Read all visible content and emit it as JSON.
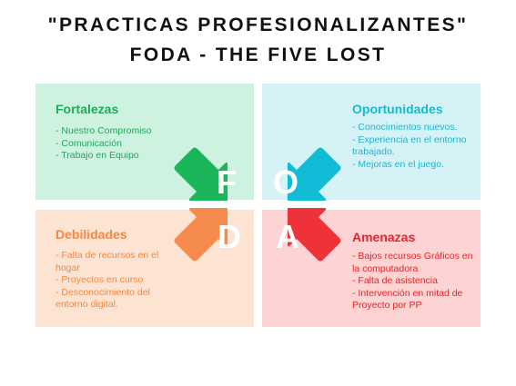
{
  "header": {
    "line1": "\"PRACTICAS PROFESIONALIZANTES\"",
    "line2": "FODA - THE FIVE LOST"
  },
  "quadrants": {
    "fortalezas": {
      "title": "Fortalezas",
      "letter": "F",
      "items": [
        "- Nuestro Compromiso",
        "- Comunicación",
        "- Trabajo en Equipo"
      ],
      "panel_color": "#cdf3e0",
      "text_color": "#1faa5a",
      "arrow_color": "#1cb65a"
    },
    "oportunidades": {
      "title": "Oportunidades",
      "letter": "O",
      "items": [
        "- Conocimientos nuevos.",
        "- Experiencia en el entorno trabajado.",
        "- Mejoras en el juego."
      ],
      "panel_color": "#d5f3f7",
      "text_color": "#19b7d0",
      "arrow_color": "#12bcd6"
    },
    "debilidades": {
      "title": "Debilidades",
      "letter": "D",
      "items": [
        "- Falta de recursos en el hogar",
        "- Proyectos en curso",
        "- Desconocimiento del entorno digital."
      ],
      "panel_color": "#fde3d2",
      "text_color": "#f28a45",
      "arrow_color": "#f58b4c"
    },
    "amenazas": {
      "title": "Amenazas",
      "letter": "A",
      "items": [
        "- Bajos recursos Gráficos en la computadora",
        "- Falta de asistencia",
        "- Intervención en mitad de Proyecto por PP"
      ],
      "panel_color": "#fdd3d4",
      "text_color": "#e3262b",
      "arrow_color": "#ee3239"
    }
  }
}
